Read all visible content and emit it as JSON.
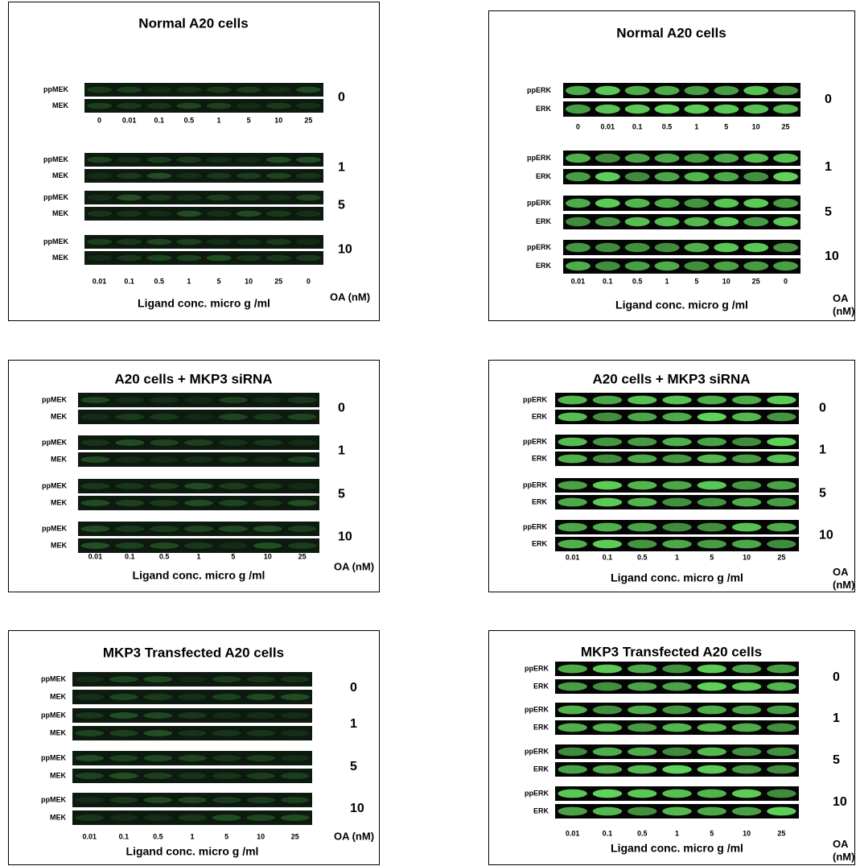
{
  "panels": [
    {
      "title": "Normal A20 cells",
      "blots": [
        {
          "oa": "0",
          "rows": [
            "ppMEK",
            "MEK"
          ]
        },
        {
          "oa": "1",
          "rows": [
            "ppMEK",
            "MEK"
          ]
        },
        {
          "oa": "5",
          "rows": [
            "ppMEK",
            "MEK"
          ]
        },
        {
          "oa": "10",
          "rows": [
            "ppMEK",
            "MEK"
          ]
        }
      ],
      "lanes_top": [
        "0",
        "0.01",
        "0.1",
        "0.5",
        "1",
        "5",
        "10",
        "25"
      ],
      "lanes": [
        "0.01",
        "0.1",
        "0.5",
        "1",
        "5",
        "10",
        "25",
        "0"
      ],
      "xlabel": "Ligand conc. micro g /ml",
      "oa_label": "OA (nM)"
    },
    {
      "title": "Normal A20 cells",
      "blots": [
        {
          "oa": "0",
          "rows": [
            "ppERK",
            "ERK"
          ]
        },
        {
          "oa": "1",
          "rows": [
            "ppERK",
            "ERK"
          ]
        },
        {
          "oa": "5",
          "rows": [
            "ppERK",
            "ERK"
          ]
        },
        {
          "oa": "10",
          "rows": [
            "ppERK",
            "ERK"
          ]
        }
      ],
      "lanes_top": [
        "0",
        "0.01",
        "0.1",
        "0.5",
        "1",
        "5",
        "10",
        "25"
      ],
      "lanes": [
        "0.01",
        "0.1",
        "0.5",
        "1",
        "5",
        "10",
        "25",
        "0"
      ],
      "xlabel": "Ligand conc. micro g /ml",
      "oa_label": "OA (nM)"
    },
    {
      "title": "A20 cells + MKP3 siRNA",
      "blots": [
        {
          "oa": "0",
          "rows": [
            "ppMEK",
            "MEK"
          ]
        },
        {
          "oa": "1",
          "rows": [
            "ppMEK",
            "MEK"
          ]
        },
        {
          "oa": "5",
          "rows": [
            "ppMEK",
            "MEK"
          ]
        },
        {
          "oa": "10",
          "rows": [
            "ppMEK",
            "MEK"
          ]
        }
      ],
      "lanes": [
        "0.01",
        "0.1",
        "0.5",
        "1",
        "5",
        "10",
        "25"
      ],
      "xlabel": "Ligand conc. micro g /ml",
      "oa_label": "OA (nM)"
    },
    {
      "title": "A20 cells + MKP3 siRNA",
      "blots": [
        {
          "oa": "0",
          "rows": [
            "ppERK",
            "ERK"
          ]
        },
        {
          "oa": "1",
          "rows": [
            "ppERK",
            "ERK"
          ]
        },
        {
          "oa": "5",
          "rows": [
            "ppERK",
            "ERK"
          ]
        },
        {
          "oa": "10",
          "rows": [
            "ppERK",
            "ERK"
          ]
        }
      ],
      "lanes": [
        "0.01",
        "0.1",
        "0.5",
        "1",
        "5",
        "10",
        "25"
      ],
      "xlabel": "Ligand conc. micro g /ml",
      "oa_label": "OA (nM)"
    },
    {
      "title": "MKP3 Transfected A20 cells",
      "blots": [
        {
          "oa": "0",
          "rows": [
            "ppMEK",
            "MEK"
          ]
        },
        {
          "oa": "1",
          "rows": [
            "ppMEK",
            "MEK"
          ]
        },
        {
          "oa": "5",
          "rows": [
            "ppMEK",
            "MEK"
          ]
        },
        {
          "oa": "10",
          "rows": [
            "ppMEK",
            "MEK"
          ]
        }
      ],
      "lanes": [
        "0.01",
        "0.1",
        "0.5",
        "1",
        "5",
        "10",
        "25"
      ],
      "xlabel": "Ligand conc. micro g /ml",
      "oa_label": "OA (nM)"
    },
    {
      "title": "MKP3 Transfected A20 cells",
      "blots": [
        {
          "oa": "0",
          "rows": [
            "ppERK",
            "ERK"
          ]
        },
        {
          "oa": "1",
          "rows": [
            "ppERK",
            "ERK"
          ]
        },
        {
          "oa": "5",
          "rows": [
            "ppERK",
            "ERK"
          ]
        },
        {
          "oa": "10",
          "rows": [
            "ppERK",
            "ERK"
          ]
        }
      ],
      "lanes": [
        "0.01",
        "0.1",
        "0.5",
        "1",
        "5",
        "10",
        "25"
      ],
      "xlabel": "Ligand conc. micro g /ml",
      "oa_label": "OA (nM)"
    }
  ]
}
